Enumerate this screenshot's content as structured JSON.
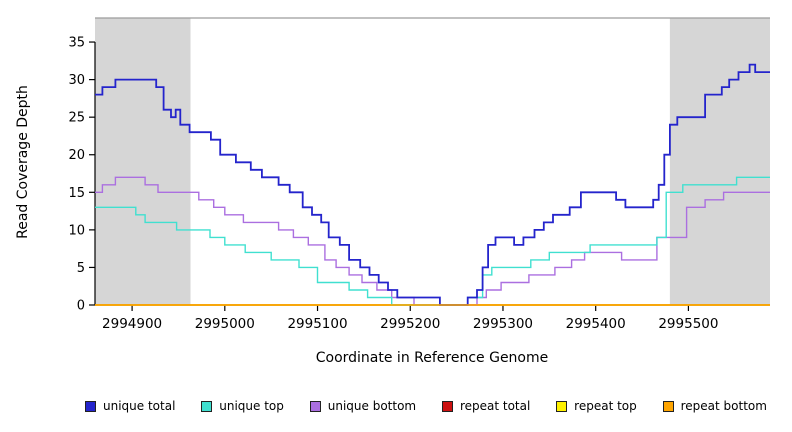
{
  "chart_data": {
    "type": "line",
    "style": "step",
    "title": "",
    "xlabel": "Coordinate in Reference Genome",
    "ylabel": "Read Coverage Depth",
    "xlim": [
      2994860,
      2995588
    ],
    "ylim": [
      0,
      38.2
    ],
    "x_ticks": [
      2994900,
      2995000,
      2995100,
      2995200,
      2995300,
      2995400,
      2995500
    ],
    "y_ticks": [
      0,
      5,
      10,
      15,
      20,
      25,
      30,
      35
    ],
    "grid": false,
    "legend_position": "bottom",
    "shaded_regions": [
      {
        "from": 2994860,
        "to": 2994963,
        "color": "#D6D6D6"
      },
      {
        "from": 2995480,
        "to": 2995588,
        "color": "#D6D6D6"
      }
    ],
    "top_border_color": "#9C9C9C",
    "series": [
      {
        "name": "unique total",
        "color": "#2424CC",
        "points": [
          [
            2994860,
            28
          ],
          [
            2994868,
            29
          ],
          [
            2994882,
            30
          ],
          [
            2994926,
            29
          ],
          [
            2994934,
            26
          ],
          [
            2994942,
            25
          ],
          [
            2994947,
            26
          ],
          [
            2994952,
            24
          ],
          [
            2994962,
            23
          ],
          [
            2994985,
            22
          ],
          [
            2994995,
            20
          ],
          [
            2995012,
            19
          ],
          [
            2995028,
            18
          ],
          [
            2995040,
            17
          ],
          [
            2995058,
            16
          ],
          [
            2995070,
            15
          ],
          [
            2995084,
            13
          ],
          [
            2995094,
            12
          ],
          [
            2995104,
            11
          ],
          [
            2995112,
            9
          ],
          [
            2995124,
            8
          ],
          [
            2995134,
            6
          ],
          [
            2995146,
            5
          ],
          [
            2995156,
            4
          ],
          [
            2995166,
            3
          ],
          [
            2995176,
            2
          ],
          [
            2995186,
            1
          ],
          [
            2995232,
            0
          ],
          [
            2995262,
            1
          ],
          [
            2995272,
            2
          ],
          [
            2995278,
            5
          ],
          [
            2995284,
            8
          ],
          [
            2995292,
            9
          ],
          [
            2995312,
            8
          ],
          [
            2995322,
            9
          ],
          [
            2995334,
            10
          ],
          [
            2995344,
            11
          ],
          [
            2995354,
            12
          ],
          [
            2995372,
            13
          ],
          [
            2995384,
            15
          ],
          [
            2995422,
            14
          ],
          [
            2995432,
            13
          ],
          [
            2995462,
            14
          ],
          [
            2995468,
            16
          ],
          [
            2995474,
            20
          ],
          [
            2995480,
            24
          ],
          [
            2995488,
            25
          ],
          [
            2995518,
            28
          ],
          [
            2995536,
            29
          ],
          [
            2995544,
            30
          ],
          [
            2995554,
            31
          ],
          [
            2995566,
            32
          ],
          [
            2995572,
            31
          ]
        ]
      },
      {
        "name": "unique top",
        "color": "#40E0D0",
        "points": [
          [
            2994860,
            13
          ],
          [
            2994904,
            12
          ],
          [
            2994914,
            11
          ],
          [
            2994948,
            10
          ],
          [
            2994984,
            9
          ],
          [
            2995000,
            8
          ],
          [
            2995022,
            7
          ],
          [
            2995050,
            6
          ],
          [
            2995080,
            5
          ],
          [
            2995100,
            3
          ],
          [
            2995134,
            2
          ],
          [
            2995154,
            1
          ],
          [
            2995180,
            0
          ],
          [
            2995262,
            1
          ],
          [
            2995278,
            4
          ],
          [
            2995288,
            5
          ],
          [
            2995330,
            6
          ],
          [
            2995350,
            7
          ],
          [
            2995394,
            8
          ],
          [
            2995466,
            9
          ],
          [
            2995476,
            15
          ],
          [
            2995494,
            16
          ],
          [
            2995552,
            17
          ]
        ]
      },
      {
        "name": "unique bottom",
        "color": "#AB6FE0",
        "points": [
          [
            2994860,
            15
          ],
          [
            2994868,
            16
          ],
          [
            2994882,
            17
          ],
          [
            2994914,
            16
          ],
          [
            2994928,
            15
          ],
          [
            2994972,
            14
          ],
          [
            2994988,
            13
          ],
          [
            2995000,
            12
          ],
          [
            2995020,
            11
          ],
          [
            2995058,
            10
          ],
          [
            2995074,
            9
          ],
          [
            2995090,
            8
          ],
          [
            2995108,
            6
          ],
          [
            2995120,
            5
          ],
          [
            2995134,
            4
          ],
          [
            2995148,
            3
          ],
          [
            2995164,
            2
          ],
          [
            2995180,
            1
          ],
          [
            2995204,
            0
          ],
          [
            2995272,
            1
          ],
          [
            2995282,
            2
          ],
          [
            2995298,
            3
          ],
          [
            2995328,
            4
          ],
          [
            2995356,
            5
          ],
          [
            2995374,
            6
          ],
          [
            2995388,
            7
          ],
          [
            2995428,
            6
          ],
          [
            2995466,
            9
          ],
          [
            2995498,
            13
          ],
          [
            2995518,
            14
          ],
          [
            2995538,
            15
          ]
        ]
      },
      {
        "name": "repeat total",
        "color": "#CC1111",
        "points": [
          [
            2994860,
            0
          ]
        ]
      },
      {
        "name": "repeat top",
        "color": "#FFF200",
        "points": [
          [
            2994860,
            0
          ]
        ]
      },
      {
        "name": "repeat bottom",
        "color": "#FFA500",
        "points": [
          [
            2994860,
            0
          ]
        ]
      }
    ]
  },
  "legend": {
    "items": [
      {
        "label": "unique total",
        "color": "#2424CC"
      },
      {
        "label": "unique top",
        "color": "#40E0D0"
      },
      {
        "label": "unique bottom",
        "color": "#AB6FE0"
      },
      {
        "label": "repeat total",
        "color": "#CC1111"
      },
      {
        "label": "repeat top",
        "color": "#FFF200"
      },
      {
        "label": "repeat bottom",
        "color": "#FFA500"
      }
    ]
  }
}
